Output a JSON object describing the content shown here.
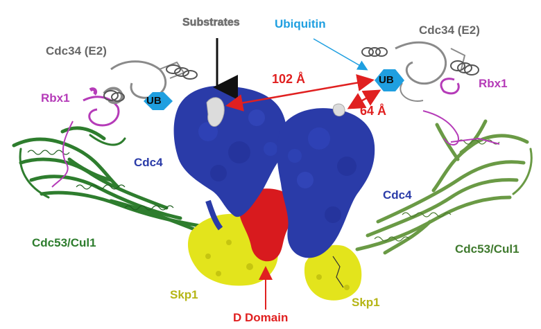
{
  "labels": {
    "substrates": "Substrates",
    "ubiquitin": "Ubiquitin",
    "cdc34_left": "Cdc34 (E2)",
    "cdc34_right": "Cdc34 (E2)",
    "rbx1_left": "Rbx1",
    "rbx1_right": "Rbx1",
    "cdc4_left": "Cdc4",
    "cdc4_right": "Cdc4",
    "cdc53_left": "Cdc53/Cul1",
    "cdc53_right": "Cdc53/Cul1",
    "skp1_left": "Skp1",
    "skp1_right": "Skp1",
    "d_domain": "D Domain",
    "ub_left": "UB",
    "ub_right": "UB",
    "dist_102": "102 Å",
    "dist_64": "64 Å"
  },
  "colors": {
    "cdc4": "#2a3ba8",
    "d_domain": "#d81a1e",
    "skp1": "#e3e41c",
    "cul1_left": "#2e7d2e",
    "cul1_right": "#6a9a45",
    "rbx1": "#b53bb8",
    "e2": "#8a8a8a",
    "ub": "#1f9fe0",
    "arrow_red": "#e02020",
    "ubiquitin_label": "#1f9fe0",
    "skp1_label": "#b5b516"
  }
}
